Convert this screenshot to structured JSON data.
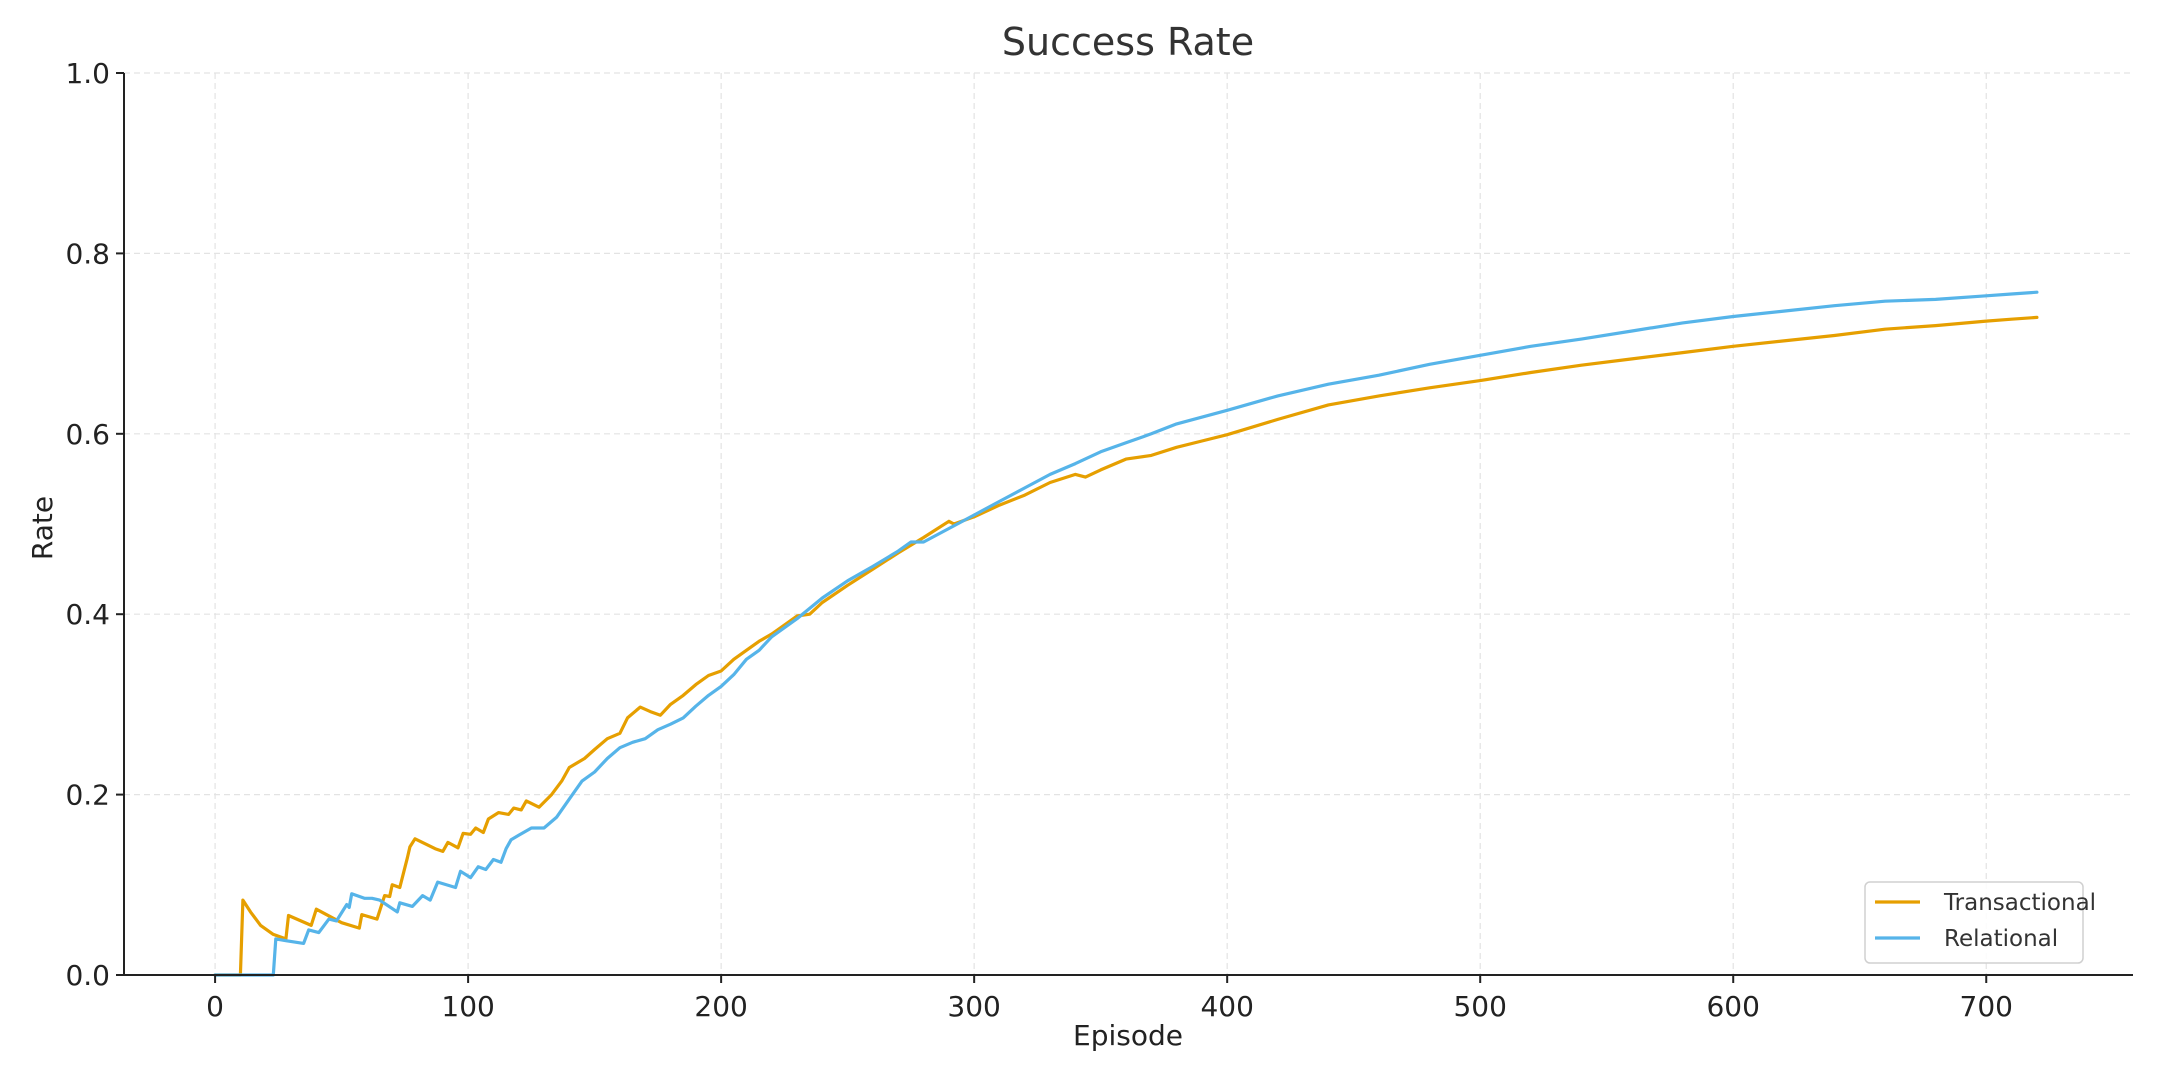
{
  "chart_data": {
    "type": "line",
    "title": "Success Rate",
    "xlabel": "Episode",
    "ylabel": "Rate",
    "xlim": [
      -36,
      758
    ],
    "ylim": [
      0,
      1.0
    ],
    "xticks": [
      0,
      100,
      200,
      300,
      400,
      500,
      600,
      700
    ],
    "xtick_labels": [
      "0",
      "100",
      "200",
      "300",
      "400",
      "500",
      "600",
      "700"
    ],
    "yticks": [
      0,
      0.2,
      0.4,
      0.6,
      0.8,
      1.0
    ],
    "ytick_labels": [
      "0.0",
      "0.2",
      "0.4",
      "0.6",
      "0.8",
      "1.0"
    ],
    "grid": true,
    "legend_position": "bottom-right",
    "series": [
      {
        "name": "Transactional",
        "color": "#E69F00",
        "points": [
          [
            0,
            0
          ],
          [
            10,
            0
          ],
          [
            11,
            0.083
          ],
          [
            14,
            0.07
          ],
          [
            18,
            0.055
          ],
          [
            23,
            0.045
          ],
          [
            28,
            0.04
          ],
          [
            29,
            0.066
          ],
          [
            38,
            0.055
          ],
          [
            40,
            0.073
          ],
          [
            50,
            0.058
          ],
          [
            57,
            0.052
          ],
          [
            58,
            0.067
          ],
          [
            64,
            0.062
          ],
          [
            67,
            0.088
          ],
          [
            69,
            0.087
          ],
          [
            70,
            0.1
          ],
          [
            73,
            0.097
          ],
          [
            76,
            0.13
          ],
          [
            77,
            0.142
          ],
          [
            79,
            0.151
          ],
          [
            87,
            0.14
          ],
          [
            90,
            0.137
          ],
          [
            92,
            0.147
          ],
          [
            96,
            0.141
          ],
          [
            98,
            0.157
          ],
          [
            101,
            0.156
          ],
          [
            103,
            0.163
          ],
          [
            106,
            0.158
          ],
          [
            108,
            0.173
          ],
          [
            112,
            0.18
          ],
          [
            116,
            0.178
          ],
          [
            118,
            0.185
          ],
          [
            121,
            0.183
          ],
          [
            123,
            0.193
          ],
          [
            128,
            0.186
          ],
          [
            133,
            0.2
          ],
          [
            137,
            0.215
          ],
          [
            140,
            0.23
          ],
          [
            146,
            0.24
          ],
          [
            150,
            0.25
          ],
          [
            155,
            0.262
          ],
          [
            160,
            0.268
          ],
          [
            163,
            0.285
          ],
          [
            168,
            0.297
          ],
          [
            172,
            0.292
          ],
          [
            176,
            0.288
          ],
          [
            180,
            0.3
          ],
          [
            185,
            0.31
          ],
          [
            190,
            0.322
          ],
          [
            195,
            0.332
          ],
          [
            200,
            0.337
          ],
          [
            205,
            0.35
          ],
          [
            210,
            0.36
          ],
          [
            215,
            0.37
          ],
          [
            220,
            0.378
          ],
          [
            225,
            0.388
          ],
          [
            230,
            0.398
          ],
          [
            235,
            0.4
          ],
          [
            240,
            0.413
          ],
          [
            250,
            0.432
          ],
          [
            260,
            0.45
          ],
          [
            270,
            0.468
          ],
          [
            280,
            0.485
          ],
          [
            290,
            0.503
          ],
          [
            292,
            0.5
          ],
          [
            300,
            0.508
          ],
          [
            310,
            0.521
          ],
          [
            320,
            0.532
          ],
          [
            330,
            0.546
          ],
          [
            340,
            0.555
          ],
          [
            344,
            0.552
          ],
          [
            350,
            0.56
          ],
          [
            360,
            0.572
          ],
          [
            370,
            0.576
          ],
          [
            380,
            0.585
          ],
          [
            390,
            0.592
          ],
          [
            400,
            0.599
          ],
          [
            420,
            0.616
          ],
          [
            440,
            0.632
          ],
          [
            460,
            0.642
          ],
          [
            480,
            0.651
          ],
          [
            500,
            0.659
          ],
          [
            520,
            0.668
          ],
          [
            540,
            0.676
          ],
          [
            560,
            0.683
          ],
          [
            580,
            0.69
          ],
          [
            600,
            0.697
          ],
          [
            620,
            0.703
          ],
          [
            640,
            0.709
          ],
          [
            660,
            0.716
          ],
          [
            680,
            0.72
          ],
          [
            700,
            0.725
          ],
          [
            710,
            0.727
          ],
          [
            720,
            0.729
          ]
        ]
      },
      {
        "name": "Relational",
        "color": "#56B4E9",
        "points": [
          [
            0,
            0
          ],
          [
            23,
            0
          ],
          [
            24,
            0.04
          ],
          [
            28,
            0.038
          ],
          [
            35,
            0.035
          ],
          [
            37,
            0.05
          ],
          [
            41,
            0.047
          ],
          [
            45,
            0.062
          ],
          [
            48,
            0.06
          ],
          [
            52,
            0.078
          ],
          [
            53,
            0.075
          ],
          [
            54,
            0.09
          ],
          [
            59,
            0.085
          ],
          [
            62,
            0.085
          ],
          [
            65,
            0.083
          ],
          [
            72,
            0.07
          ],
          [
            73,
            0.08
          ],
          [
            78,
            0.076
          ],
          [
            82,
            0.088
          ],
          [
            85,
            0.083
          ],
          [
            88,
            0.103
          ],
          [
            95,
            0.097
          ],
          [
            97,
            0.115
          ],
          [
            101,
            0.108
          ],
          [
            104,
            0.12
          ],
          [
            107,
            0.117
          ],
          [
            110,
            0.128
          ],
          [
            113,
            0.125
          ],
          [
            115,
            0.14
          ],
          [
            117,
            0.15
          ],
          [
            120,
            0.155
          ],
          [
            125,
            0.163
          ],
          [
            130,
            0.163
          ],
          [
            135,
            0.175
          ],
          [
            140,
            0.195
          ],
          [
            145,
            0.215
          ],
          [
            150,
            0.225
          ],
          [
            155,
            0.24
          ],
          [
            160,
            0.252
          ],
          [
            165,
            0.258
          ],
          [
            170,
            0.262
          ],
          [
            175,
            0.272
          ],
          [
            180,
            0.278
          ],
          [
            185,
            0.285
          ],
          [
            190,
            0.298
          ],
          [
            195,
            0.31
          ],
          [
            200,
            0.32
          ],
          [
            205,
            0.333
          ],
          [
            210,
            0.35
          ],
          [
            215,
            0.36
          ],
          [
            220,
            0.375
          ],
          [
            230,
            0.395
          ],
          [
            240,
            0.418
          ],
          [
            250,
            0.437
          ],
          [
            260,
            0.453
          ],
          [
            270,
            0.47
          ],
          [
            275,
            0.48
          ],
          [
            280,
            0.48
          ],
          [
            290,
            0.495
          ],
          [
            300,
            0.51
          ],
          [
            310,
            0.525
          ],
          [
            320,
            0.54
          ],
          [
            330,
            0.555
          ],
          [
            340,
            0.567
          ],
          [
            350,
            0.58
          ],
          [
            360,
            0.59
          ],
          [
            370,
            0.6
          ],
          [
            380,
            0.611
          ],
          [
            400,
            0.626
          ],
          [
            420,
            0.642
          ],
          [
            440,
            0.655
          ],
          [
            460,
            0.665
          ],
          [
            480,
            0.677
          ],
          [
            500,
            0.687
          ],
          [
            520,
            0.697
          ],
          [
            540,
            0.705
          ],
          [
            560,
            0.714
          ],
          [
            580,
            0.723
          ],
          [
            600,
            0.73
          ],
          [
            620,
            0.736
          ],
          [
            640,
            0.742
          ],
          [
            660,
            0.747
          ],
          [
            680,
            0.749
          ],
          [
            700,
            0.753
          ],
          [
            710,
            0.755
          ],
          [
            720,
            0.757
          ]
        ]
      }
    ]
  }
}
